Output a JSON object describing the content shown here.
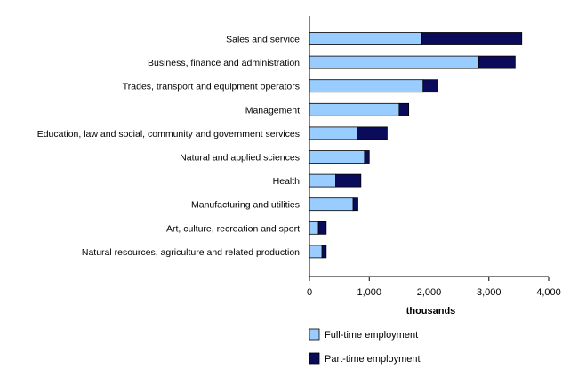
{
  "chart_data": {
    "type": "bar",
    "orientation": "horizontal",
    "stacked": true,
    "categories": [
      "Sales and service",
      "Business, finance and administration",
      "Trades, transport and equipment operators",
      "Management",
      "Education, law and social, community and government services",
      "Natural and applied sciences",
      "Health",
      "Manufacturing and utilities",
      "Art, culture, recreation and sport",
      "Natural resources, agriculture and related production"
    ],
    "series": [
      {
        "name": "Full-time employment",
        "color": "#99ccff",
        "values": [
          1880,
          2830,
          1900,
          1500,
          800,
          920,
          440,
          730,
          150,
          210
        ]
      },
      {
        "name": "Part-time employment",
        "color": "#0b0b5c",
        "values": [
          1670,
          610,
          250,
          160,
          500,
          80,
          420,
          80,
          130,
          70
        ]
      }
    ],
    "xlabel": "thousands",
    "xlim": [
      0,
      4000
    ],
    "xticks": [
      0,
      1000,
      2000,
      3000,
      4000
    ],
    "xtick_labels": [
      "0",
      "1,000",
      "2,000",
      "3,000",
      "4,000"
    ],
    "grid": false,
    "legend_position": "bottom"
  }
}
